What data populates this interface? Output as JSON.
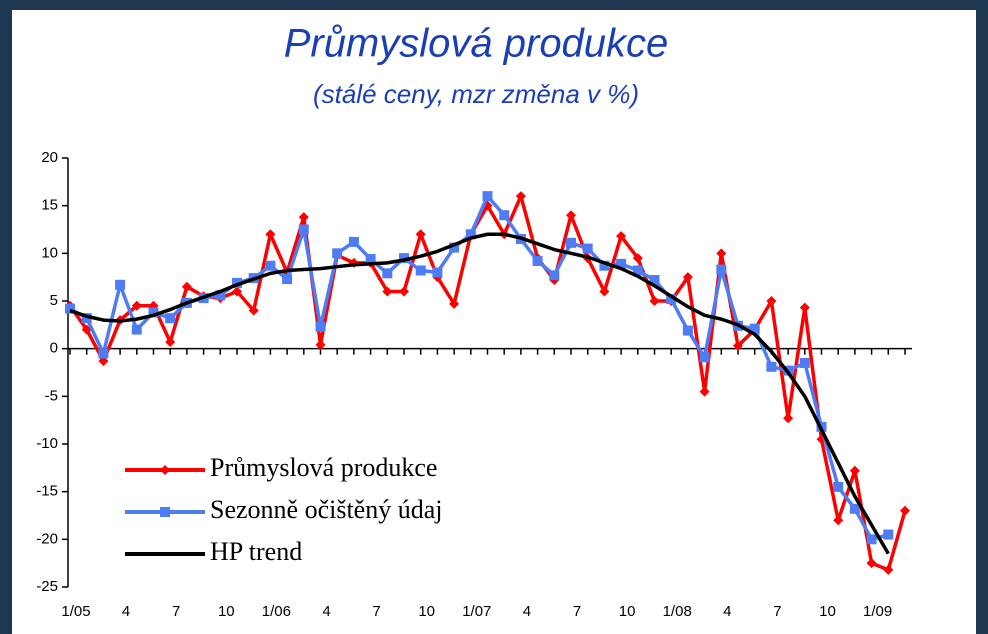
{
  "chart_data": {
    "type": "line",
    "title": "Průmyslová produkce",
    "subtitle": "(stálé ceny, mzr změna v %)",
    "categories": [
      "1/05",
      null,
      null,
      "4",
      null,
      null,
      "7",
      null,
      null,
      "10",
      null,
      null,
      "1/06",
      null,
      null,
      "4",
      null,
      null,
      "7",
      null,
      null,
      "10",
      null,
      null,
      "1/07",
      null,
      null,
      "4",
      null,
      null,
      "7",
      null,
      null,
      "10",
      null,
      null,
      "1/08",
      null,
      null,
      "4",
      null,
      null,
      "7",
      null,
      null,
      "10",
      null,
      null,
      "1/09",
      null,
      null
    ],
    "series": [
      {
        "name": "Průmyslová produkce",
        "color": "#ff0000",
        "marker": "diamond",
        "values": [
          4.5,
          2,
          -1.3,
          3,
          4.5,
          4.5,
          0.7,
          6.5,
          5.5,
          5.3,
          6,
          4,
          12,
          8,
          13.8,
          0.4,
          9.8,
          9,
          9,
          6,
          6,
          12,
          7.5,
          4.7,
          12,
          15,
          12,
          16,
          9.5,
          7.2,
          14,
          9.5,
          6,
          11.8,
          9.5,
          5,
          5,
          7.5,
          -4.5,
          10,
          0.3,
          2,
          5,
          -7.3,
          4.3,
          -9.5,
          -18,
          -12.8,
          -22.5,
          -23.2,
          -17
        ]
      },
      {
        "name": "Sezonně očištěný údaj",
        "color": "#4d7cf5",
        "marker": "square",
        "values": [
          4.2,
          3.2,
          -0.5,
          6.7,
          2,
          3.8,
          3.2,
          4.8,
          5.3,
          5.6,
          6.9,
          7.4,
          8.7,
          7.3,
          12.5,
          2.3,
          10,
          11.2,
          9.4,
          7.9,
          9.5,
          8.2,
          8,
          10.6,
          12,
          16,
          14,
          11.5,
          9.2,
          7.7,
          11.1,
          10.5,
          8.7,
          8.9,
          8.2,
          7.2,
          5.2,
          1.9,
          -0.9,
          8.3,
          2.4,
          2.1,
          -1.9,
          -2.3,
          -1.5,
          -8.2,
          -14.5,
          -16.8,
          -20,
          -19.5,
          null
        ]
      },
      {
        "name": "HP trend",
        "color": "#000000",
        "marker": "none",
        "values": [
          4,
          3.4,
          3,
          2.9,
          3.1,
          3.5,
          4.1,
          4.8,
          5.4,
          6,
          6.7,
          7.3,
          7.9,
          8.2,
          8.3,
          8.4,
          8.6,
          8.8,
          8.9,
          9,
          9.3,
          9.7,
          10.2,
          10.9,
          11.6,
          12,
          12,
          11.6,
          11,
          10.4,
          10,
          9.6,
          9,
          8.4,
          7.6,
          6.6,
          5.5,
          4.4,
          3.5,
          3.1,
          2.5,
          1.5,
          -0.3,
          -2.5,
          -5,
          -8.5,
          -12,
          -15.5,
          -18.5,
          -21.5,
          null
        ]
      }
    ],
    "ylim": [
      -25,
      20
    ],
    "yticks": [
      -25,
      -20,
      -15,
      -10,
      -5,
      0,
      5,
      10,
      15,
      20
    ],
    "legend": "lower left",
    "grid": false
  }
}
